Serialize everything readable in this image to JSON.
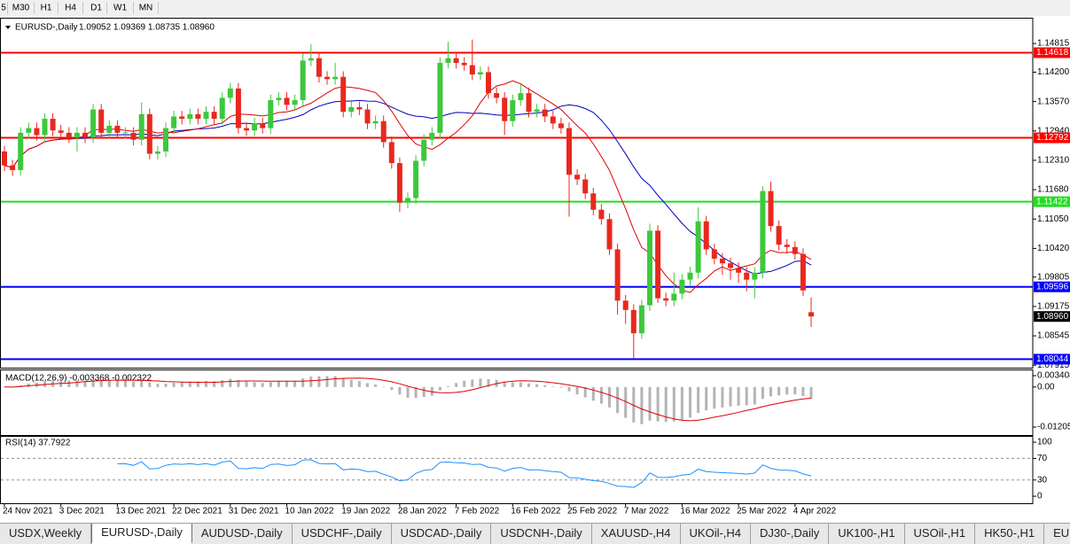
{
  "toolbar": {
    "timeframes": [
      "5",
      "M30",
      "H1",
      "H4",
      "D1",
      "W1",
      "MN"
    ]
  },
  "chart": {
    "symbol": "EURUSD-,Daily",
    "ohlc_text": "1.09052 1.09369 1.08735 1.08960",
    "ylim": [
      1.079,
      1.1533
    ],
    "yticks": [
      1.14815,
      {
        "value": 1.142,
        "label": "1.14200"
      },
      {
        "value": 1.1357,
        "label": "1.13570"
      },
      {
        "value": 1.1294,
        "label": "1.12940"
      },
      {
        "value": 1.1231,
        "label": "1.12310"
      },
      {
        "value": 1.1168,
        "label": "1.11680"
      },
      {
        "value": 1.1105,
        "label": "1.11050"
      },
      {
        "value": 1.1042,
        "label": "1.10420"
      },
      1.09805,
      1.09175,
      1.08545,
      1.07915
    ],
    "bull_color": "#3cc83c",
    "bear_color": "#e8281e",
    "candles": [
      [
        1.125,
        1.1262,
        1.1208,
        1.122
      ],
      [
        1.122,
        1.1232,
        1.1198,
        1.121
      ],
      [
        1.121,
        1.1302,
        1.1198,
        1.129
      ],
      [
        1.129,
        1.1312,
        1.1278,
        1.13
      ],
      [
        1.13,
        1.1312,
        1.1273,
        1.1285
      ],
      [
        1.1285,
        1.1332,
        1.1273,
        1.132
      ],
      [
        1.132,
        1.1332,
        1.1283,
        1.1295
      ],
      [
        1.1295,
        1.1307,
        1.1278,
        1.129
      ],
      [
        1.129,
        1.1302,
        1.1268,
        1.128
      ],
      [
        1.128,
        1.1302,
        1.125,
        1.129
      ],
      [
        1.129,
        1.1302,
        1.1268,
        1.128
      ],
      [
        1.128,
        1.1352,
        1.1268,
        1.134
      ],
      [
        1.134,
        1.1352,
        1.1278,
        1.129
      ],
      [
        1.129,
        1.1317,
        1.1278,
        1.1305
      ],
      [
        1.1305,
        1.1317,
        1.1278,
        1.129
      ],
      [
        1.129,
        1.1302,
        1.1278,
        1.1291
      ],
      [
        1.129,
        1.1302,
        1.1263,
        1.1275
      ],
      [
        1.1275,
        1.1355,
        1.1263,
        1.133
      ],
      [
        1.133,
        1.1342,
        1.1233,
        1.1245
      ],
      [
        1.1245,
        1.1262,
        1.1233,
        1.125
      ],
      [
        1.125,
        1.1312,
        1.1238,
        1.13
      ],
      [
        1.13,
        1.1337,
        1.1288,
        1.1325
      ],
      [
        1.1325,
        1.1337,
        1.1308,
        1.132
      ],
      [
        1.132,
        1.1342,
        1.1308,
        1.133
      ],
      [
        1.133,
        1.1342,
        1.1308,
        1.132
      ],
      [
        1.132,
        1.1347,
        1.1308,
        1.1335
      ],
      [
        1.1335,
        1.1347,
        1.1308,
        1.132
      ],
      [
        1.132,
        1.1377,
        1.1308,
        1.1365
      ],
      [
        1.1365,
        1.1397,
        1.1353,
        1.1385
      ],
      [
        1.1385,
        1.1397,
        1.1288,
        1.13
      ],
      [
        1.13,
        1.1312,
        1.1283,
        1.1295
      ],
      [
        1.1295,
        1.1322,
        1.1283,
        1.131
      ],
      [
        1.131,
        1.1322,
        1.1288,
        1.13
      ],
      [
        1.13,
        1.1372,
        1.1288,
        1.136
      ],
      [
        1.136,
        1.1377,
        1.1348,
        1.1365
      ],
      [
        1.1365,
        1.1377,
        1.1338,
        1.135
      ],
      [
        1.135,
        1.1372,
        1.1338,
        1.136
      ],
      [
        1.136,
        1.146,
        1.1348,
        1.1445
      ],
      [
        1.1445,
        1.148,
        1.1433,
        1.145
      ],
      [
        1.145,
        1.1462,
        1.1398,
        1.141
      ],
      [
        1.141,
        1.1422,
        1.1393,
        1.1405
      ],
      [
        1.1405,
        1.144,
        1.1393,
        1.141
      ],
      [
        1.141,
        1.1422,
        1.1323,
        1.1335
      ],
      [
        1.1335,
        1.1357,
        1.1323,
        1.1345
      ],
      [
        1.1345,
        1.1357,
        1.1328,
        1.134
      ],
      [
        1.134,
        1.1352,
        1.1298,
        1.131
      ],
      [
        1.131,
        1.1327,
        1.1298,
        1.1315
      ],
      [
        1.1315,
        1.1327,
        1.1258,
        1.127
      ],
      [
        1.127,
        1.1282,
        1.1213,
        1.1225
      ],
      [
        1.1225,
        1.1237,
        1.112,
        1.114
      ],
      [
        1.114,
        1.1162,
        1.1128,
        1.115
      ],
      [
        1.115,
        1.1242,
        1.1138,
        1.123
      ],
      [
        1.123,
        1.1287,
        1.1218,
        1.1275
      ],
      [
        1.1275,
        1.1302,
        1.1263,
        1.129
      ],
      [
        1.129,
        1.1452,
        1.1278,
        1.144
      ],
      [
        1.144,
        1.1485,
        1.1428,
        1.145
      ],
      [
        1.145,
        1.1462,
        1.1428,
        1.144
      ],
      [
        1.144,
        1.1452,
        1.1423,
        1.1435
      ],
      [
        1.1435,
        1.149,
        1.1403,
        1.1415
      ],
      [
        1.1415,
        1.1432,
        1.1403,
        1.142
      ],
      [
        1.142,
        1.1432,
        1.1363,
        1.1375
      ],
      [
        1.1375,
        1.1387,
        1.1353,
        1.1365
      ],
      [
        1.1365,
        1.1377,
        1.1285,
        1.1315
      ],
      [
        1.1315,
        1.1372,
        1.1303,
        1.136
      ],
      [
        1.136,
        1.1395,
        1.1348,
        1.1375
      ],
      [
        1.1375,
        1.1387,
        1.1323,
        1.1335
      ],
      [
        1.1335,
        1.1352,
        1.1323,
        1.134
      ],
      [
        1.134,
        1.1352,
        1.1313,
        1.1325
      ],
      [
        1.1325,
        1.1337,
        1.1298,
        1.131
      ],
      [
        1.131,
        1.1322,
        1.1288,
        1.13
      ],
      [
        1.13,
        1.1312,
        1.111,
        1.12
      ],
      [
        1.12,
        1.1212,
        1.1178,
        1.119
      ],
      [
        1.119,
        1.1202,
        1.1148,
        1.116
      ],
      [
        1.116,
        1.1172,
        1.1113,
        1.1125
      ],
      [
        1.1125,
        1.1137,
        1.1093,
        1.1105
      ],
      [
        1.1105,
        1.1117,
        1.1028,
        1.104
      ],
      [
        1.104,
        1.1052,
        1.09,
        1.093
      ],
      [
        1.093,
        1.0942,
        1.088,
        1.091
      ],
      [
        1.091,
        1.0922,
        1.0806,
        1.086
      ],
      [
        1.086,
        1.0932,
        1.0848,
        1.092
      ],
      [
        1.092,
        1.1095,
        1.0908,
        1.108
      ],
      [
        1.108,
        1.1092,
        1.0925,
        1.0935
      ],
      [
        1.0935,
        1.0947,
        1.0918,
        1.093
      ],
      [
        1.093,
        1.099,
        1.0918,
        1.0945
      ],
      [
        1.0945,
        1.0987,
        1.0933,
        1.0975
      ],
      [
        1.0975,
        1.1002,
        1.0963,
        1.099
      ],
      [
        1.099,
        1.113,
        1.0978,
        1.11
      ],
      [
        1.11,
        1.1112,
        1.1028,
        1.104
      ],
      [
        1.104,
        1.1052,
        1.1008,
        1.102
      ],
      [
        1.102,
        1.1032,
        1.0985,
        1.101
      ],
      [
        1.101,
        1.1022,
        1.0975,
        1.1
      ],
      [
        1.1,
        1.1012,
        1.0968,
        1.099
      ],
      [
        1.099,
        1.1002,
        1.095,
        1.0975
      ],
      [
        1.0975,
        1.1002,
        1.0935,
        1.099
      ],
      [
        1.099,
        1.1175,
        1.0978,
        1.1165
      ],
      [
        1.1165,
        1.1185,
        1.1078,
        1.109
      ],
      [
        1.109,
        1.1102,
        1.1038,
        1.105
      ],
      [
        1.105,
        1.1062,
        1.103,
        1.1045
      ],
      [
        1.1045,
        1.1057,
        1.1018,
        1.103
      ],
      [
        1.103,
        1.1042,
        1.094,
        1.0952
      ],
      [
        1.09052,
        1.09369,
        1.08735,
        1.0896
      ]
    ],
    "levels": [
      {
        "value": 1.14618,
        "color": "#ff0000"
      },
      {
        "value": 1.12792,
        "color": "#ff0000"
      },
      {
        "value": 1.11422,
        "color": "#22dd22"
      },
      {
        "value": 1.09596,
        "color": "#0000ff"
      },
      {
        "value": 1.08044,
        "color": "#0000ff"
      }
    ],
    "current_price": {
      "value": 1.0896,
      "label": "1.08960"
    },
    "dates": [
      "24 Nov 2021",
      "3 Dec 2021",
      "13 Dec 2021",
      "22 Dec 2021",
      "31 Dec 2021",
      "10 Jan 2022",
      "19 Jan 2022",
      "28 Jan 2022",
      "7 Feb 2022",
      "16 Feb 2022",
      "25 Feb 2022",
      "7 Mar 2022",
      "16 Mar 2022",
      "25 Mar 2022",
      "4 Apr 2022"
    ]
  },
  "macd": {
    "title": "MACD(12,26,9) -0.003368 -0.002322",
    "ylim": [
      -0.01419,
      0.00501
    ],
    "yticks": [
      0.003408,
      {
        "value": 0,
        "label": "0.00"
      },
      -0.012058
    ]
  },
  "rsi": {
    "title": "RSI(14) 37.7922",
    "ylim": [
      -13,
      110
    ],
    "yticks": [
      100,
      70,
      30,
      0
    ],
    "levels": [
      70,
      30
    ]
  },
  "tabs": {
    "items": [
      "USDX,Weekly",
      "EURUSD-,Daily",
      "AUDUSD-,Daily",
      "USDCHF-,Daily",
      "USDCAD-,Daily",
      "USDCNH-,Daily",
      "XAUUSD-,H4",
      "UKOil-,H4",
      "DJ30-,Daily",
      "UK100-,H1",
      "USOil-,H1",
      "HK50-,H1",
      "EU"
    ],
    "active": 1
  }
}
